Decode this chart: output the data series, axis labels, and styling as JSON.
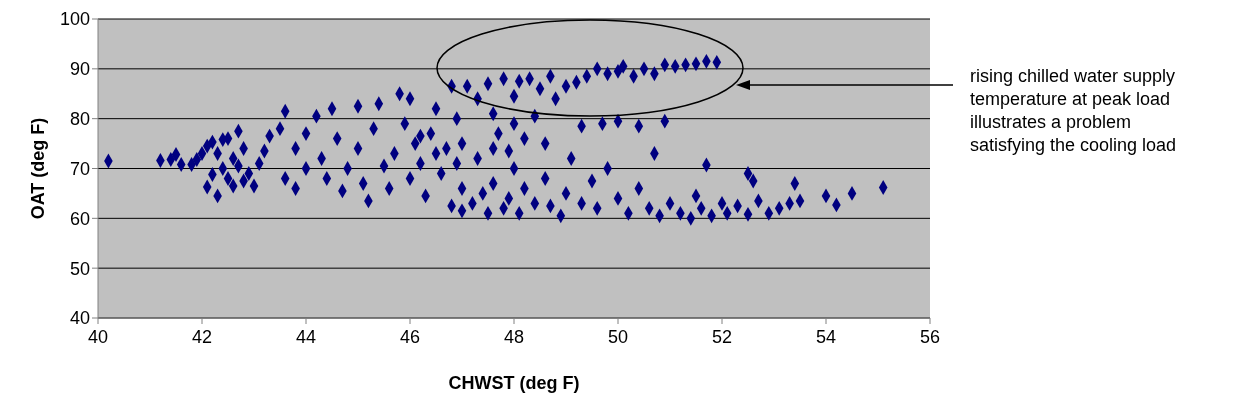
{
  "chart_data": {
    "type": "scatter",
    "xlabel": "CHWST (deg F)",
    "ylabel": "OAT (deg F)",
    "xlim": [
      40,
      56
    ],
    "xticks": [
      40,
      42,
      44,
      46,
      48,
      50,
      52,
      54,
      56
    ],
    "ylim": [
      40,
      100
    ],
    "yticks": [
      40,
      50,
      60,
      70,
      80,
      90,
      100
    ],
    "grid": "y",
    "marker": "diamond",
    "annotations": [
      "rising chilled water supply temperature at peak load illustrates a problem satisfying the cooling load"
    ],
    "series": [
      {
        "color": "#000080",
        "x": [
          40.2,
          41.2,
          41.4,
          41.5,
          41.6,
          41.8,
          41.9,
          42.0,
          42.1,
          42.2,
          42.3,
          42.1,
          42.3,
          42.4,
          42.5,
          42.6,
          42.5,
          42.7,
          42.6,
          42.8,
          42.9,
          43.0,
          43.1,
          43.2,
          42.8,
          42.4,
          42.2,
          42.7,
          43.3,
          43.5,
          43.6,
          43.8,
          43.6,
          43.8,
          44.0,
          44.0,
          44.2,
          44.3,
          44.4,
          44.5,
          44.6,
          44.7,
          44.8,
          45.0,
          45.0,
          45.1,
          45.2,
          45.3,
          45.4,
          45.5,
          45.6,
          45.7,
          45.8,
          45.9,
          46.0,
          46.0,
          46.1,
          46.2,
          46.3,
          46.4,
          46.5,
          46.6,
          46.7,
          46.8,
          46.9,
          46.9,
          47.0,
          46.5,
          47.0,
          47.3,
          47.6,
          46.2,
          47.9,
          47.1,
          47.3,
          47.5,
          47.6,
          47.8,
          48.0,
          48.1,
          48.3,
          48.5,
          48.7,
          48.8,
          49.0,
          49.2,
          49.4,
          49.6,
          49.8,
          50.0,
          50.3,
          50.5,
          50.7,
          50.9,
          51.1,
          51.3,
          51.5,
          51.7,
          51.9,
          50.1,
          49.3,
          49.7,
          50.0,
          50.4,
          50.9,
          48.0,
          48.4,
          47.7,
          48.2,
          48.6,
          46.8,
          47.0,
          47.2,
          47.4,
          47.5,
          47.6,
          47.8,
          47.9,
          48.0,
          48.1,
          48.2,
          48.4,
          48.6,
          48.7,
          48.9,
          49.0,
          49.1,
          49.3,
          49.5,
          49.6,
          49.8,
          50.0,
          50.2,
          50.4,
          50.6,
          50.7,
          50.8,
          51.0,
          51.2,
          51.4,
          51.5,
          51.6,
          51.7,
          51.8,
          52.0,
          52.1,
          52.3,
          52.5,
          52.5,
          52.6,
          52.7,
          52.9,
          53.1,
          53.3,
          53.4,
          53.5,
          54.0,
          54.2,
          54.5,
          55.1
        ],
        "values": [
          71.5,
          71.6,
          71.8,
          72.8,
          70.8,
          70.8,
          71.8,
          73,
          74.5,
          75.3,
          73,
          66.3,
          64.5,
          70,
          68,
          72,
          76,
          77.5,
          66.5,
          67.5,
          69,
          66.5,
          71,
          73.5,
          74,
          75.8,
          68.8,
          70.5,
          76.5,
          78,
          81.5,
          74,
          68,
          66,
          70,
          77,
          80.5,
          72,
          68,
          82,
          76,
          65.5,
          70,
          74,
          82.5,
          67,
          63.5,
          78,
          83,
          70.5,
          66,
          73,
          85,
          79,
          68,
          84,
          75,
          71,
          64.5,
          77,
          82,
          69,
          74,
          86.5,
          80,
          71,
          66,
          73,
          75,
          72,
          74,
          76.5,
          73.5,
          86.5,
          84,
          87,
          81,
          88,
          84.5,
          87.5,
          88,
          86,
          88.5,
          84,
          86.5,
          87.3,
          88.5,
          90,
          89,
          89.5,
          88.5,
          90,
          89,
          90.8,
          90.5,
          90.8,
          91,
          91.5,
          91.3,
          90.5,
          78.5,
          79,
          79.5,
          78.5,
          79.5,
          79,
          80.5,
          77,
          76,
          75,
          62.5,
          61.5,
          63,
          65,
          61,
          67,
          62,
          64,
          70,
          61,
          66,
          63,
          68,
          62.5,
          60.5,
          65,
          72,
          63,
          67.5,
          62,
          70,
          64,
          61,
          66,
          62,
          73,
          60.5,
          63,
          61,
          60,
          64.5,
          62,
          70.7,
          60.5,
          63,
          61,
          62.5,
          60.8,
          69,
          67.5,
          63.5,
          61,
          62,
          63,
          67,
          63.5,
          64.5,
          62.7,
          65,
          66.2
        ]
      }
    ]
  }
}
